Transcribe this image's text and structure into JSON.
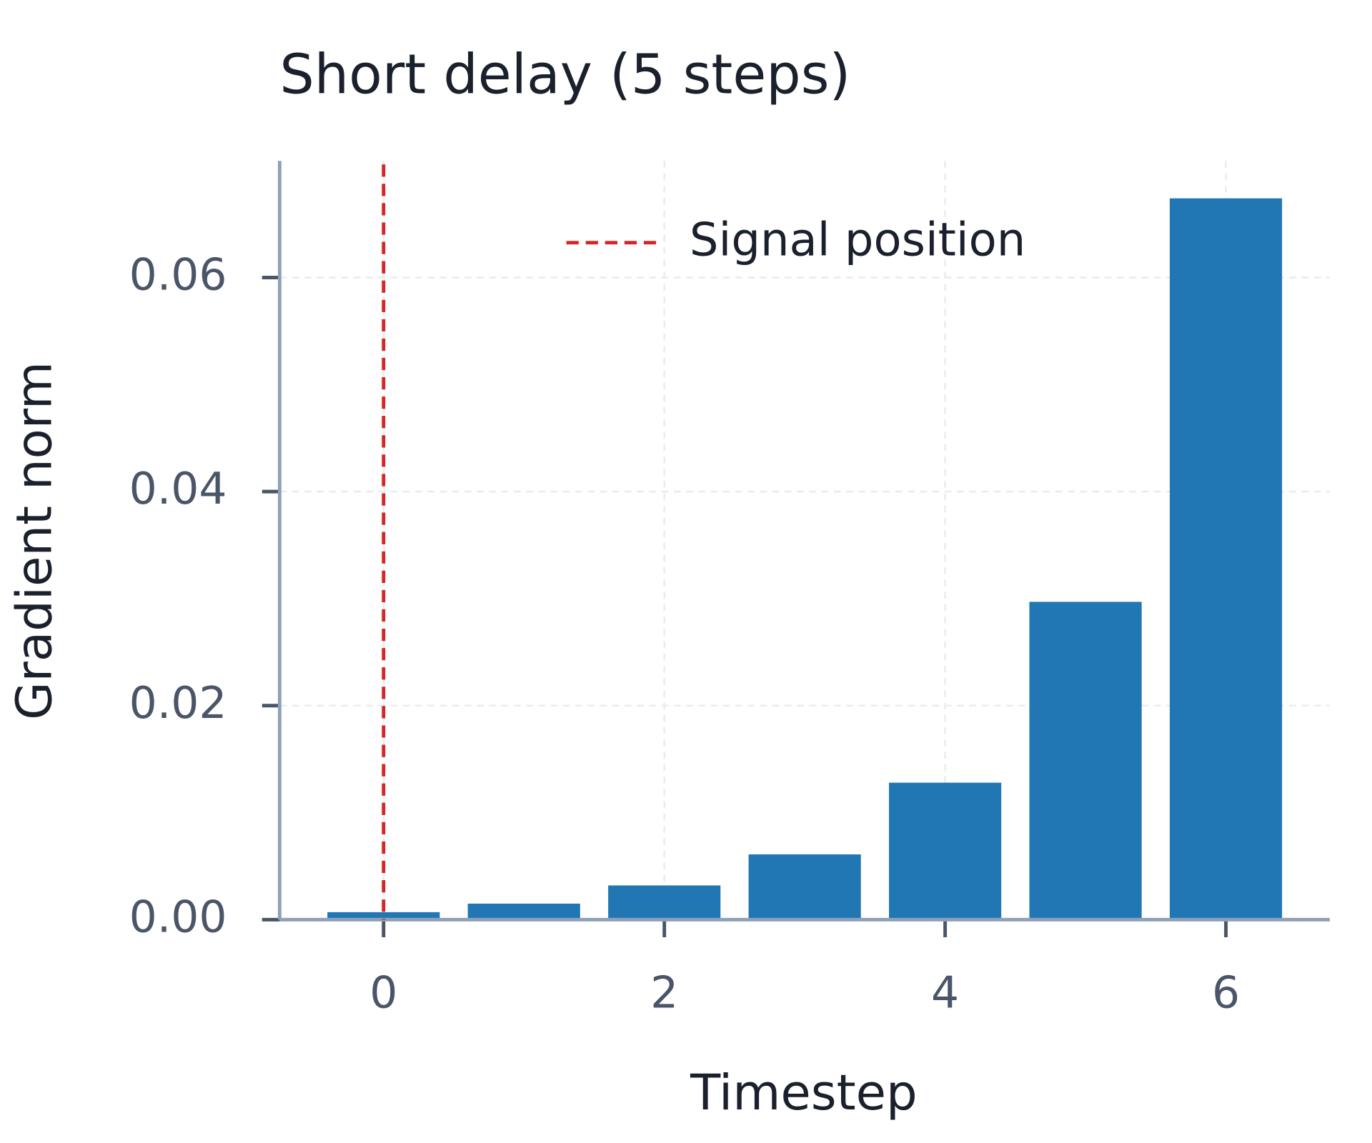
{
  "chart_data": {
    "type": "bar",
    "title": "Short delay (5 steps)",
    "xlabel": "Timestep",
    "ylabel": "Gradient norm",
    "x": [
      0,
      1,
      2,
      3,
      4,
      5,
      6
    ],
    "values": [
      0.0007,
      0.0015,
      0.0032,
      0.0061,
      0.0128,
      0.0297,
      0.0674
    ],
    "color": "#2176b4",
    "xlim": [
      -0.74,
      6.74
    ],
    "xticks": [
      0,
      2,
      4,
      6
    ],
    "ylim": [
      0,
      0.0709
    ],
    "yticks": [
      {
        "value": 0,
        "label": "0.00"
      },
      {
        "value": 0.02,
        "label": "0.02"
      },
      {
        "value": 0.04,
        "label": "0.04"
      },
      {
        "value": 0.06,
        "label": "0.06"
      }
    ],
    "grid": true,
    "vline": {
      "x": 0,
      "label": "Signal position",
      "color": "#d62728"
    },
    "legend": "upper right"
  }
}
